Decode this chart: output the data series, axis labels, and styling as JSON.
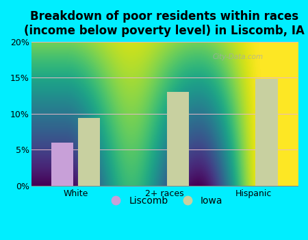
{
  "title": "Breakdown of poor residents within races\n(income below poverty level) in Liscomb, IA",
  "categories": [
    "White",
    "2+ races",
    "Hispanic"
  ],
  "liscomb_values": [
    6.0,
    null,
    null
  ],
  "iowa_values": [
    9.4,
    13.0,
    14.8
  ],
  "liscomb_color": "#c8a0d8",
  "iowa_color": "#c8d0a0",
  "bg_top_color": "#f0faf0",
  "bg_bottom_color": "#b8e8b8",
  "outer_background": "#00eeff",
  "grid_color": "#e8b8c8",
  "ylim": [
    0,
    20
  ],
  "yticks": [
    0,
    5,
    10,
    15,
    20
  ],
  "ytick_labels": [
    "0%",
    "5%",
    "10%",
    "15%",
    "20%"
  ],
  "bar_width": 0.25,
  "legend_labels": [
    "Liscomb",
    "Iowa"
  ],
  "title_fontsize": 12,
  "tick_fontsize": 9,
  "watermark": "City-Data.com"
}
